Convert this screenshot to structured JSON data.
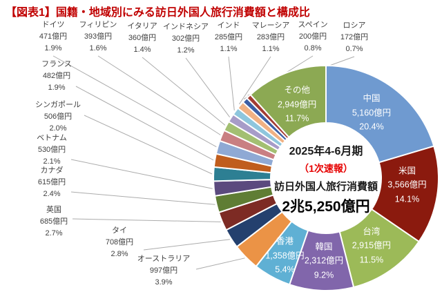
{
  "title": "【図表1】国籍・地域別にみる訪日外国人旅行消費額と構成比",
  "chart_data": {
    "type": "pie",
    "subtype": "donut",
    "title": "【図表1】国籍・地域別にみる訪日外国人旅行消費額と構成比",
    "unit": "億円",
    "legend_position": "none",
    "center": {
      "period": "2025年4-6月期",
      "note": "（1次速報）",
      "metric": "訪日外国人旅行消費額",
      "total": "2兆5,250億円"
    },
    "colors": {
      "title": "#c00000",
      "note_red": "#e60000",
      "leader_line": "#ababab",
      "slice_border": "#ffffff"
    },
    "segments": [
      {
        "label": "中国",
        "amount": "5,160億円",
        "value_oku": 5160,
        "percent": "20.4%",
        "value_pct": 20.4,
        "color": "#6f9ad0"
      },
      {
        "label": "米国",
        "amount": "3,566億円",
        "value_oku": 3566,
        "percent": "14.1%",
        "value_pct": 14.1,
        "color": "#8b1a0e"
      },
      {
        "label": "台湾",
        "amount": "2,915億円",
        "value_oku": 2915,
        "percent": "11.5%",
        "value_pct": 11.5,
        "color": "#9cba58"
      },
      {
        "label": "韓国",
        "amount": "2,312億円",
        "value_oku": 2312,
        "percent": "9.2%",
        "value_pct": 9.2,
        "color": "#8166ab"
      },
      {
        "label": "香港",
        "amount": "1,358億円",
        "value_oku": 1358,
        "percent": "5.4%",
        "value_pct": 5.4,
        "color": "#5fb0d4"
      },
      {
        "label": "オーストラリア",
        "amount": "997億円",
        "value_oku": 997,
        "percent": "3.9%",
        "value_pct": 3.9,
        "color": "#eb9346"
      },
      {
        "label": "タイ",
        "amount": "708億円",
        "value_oku": 708,
        "percent": "2.8%",
        "value_pct": 2.8,
        "color": "#24406e"
      },
      {
        "label": "英国",
        "amount": "685億円",
        "value_oku": 685,
        "percent": "2.7%",
        "value_pct": 2.7,
        "color": "#7d2b24"
      },
      {
        "label": "カナダ",
        "amount": "615億円",
        "value_oku": 615,
        "percent": "2.4%",
        "value_pct": 2.4,
        "color": "#5f7d34"
      },
      {
        "label": "ベトナム",
        "amount": "530億円",
        "value_oku": 530,
        "percent": "2.1%",
        "value_pct": 2.1,
        "color": "#5b4a7e"
      },
      {
        "label": "シンガポール",
        "amount": "506億円",
        "value_oku": 506,
        "percent": "2.0%",
        "value_pct": 2.0,
        "color": "#2d7f93"
      },
      {
        "label": "フランス",
        "amount": "482億円",
        "value_oku": 482,
        "percent": "1.9%",
        "value_pct": 1.9,
        "color": "#c05d1d"
      },
      {
        "label": "ドイツ",
        "amount": "471億円",
        "value_oku": 471,
        "percent": "1.9%",
        "value_pct": 1.9,
        "color": "#8fa9d4"
      },
      {
        "label": "フィリピン",
        "amount": "393億円",
        "value_oku": 393,
        "percent": "1.6%",
        "value_pct": 1.6,
        "color": "#c97f82"
      },
      {
        "label": "イタリア",
        "amount": "360億円",
        "value_oku": 360,
        "percent": "1.4%",
        "value_pct": 1.4,
        "color": "#a3bf72"
      },
      {
        "label": "インドネシア",
        "amount": "302億円",
        "value_oku": 302,
        "percent": "1.2%",
        "value_pct": 1.2,
        "color": "#a79cc8"
      },
      {
        "label": "インド",
        "amount": "285億円",
        "value_oku": 285,
        "percent": "1.1%",
        "value_pct": 1.1,
        "color": "#8ec6dd"
      },
      {
        "label": "マレーシア",
        "amount": "283億円",
        "value_oku": 283,
        "percent": "1.1%",
        "value_pct": 1.1,
        "color": "#f0b183"
      },
      {
        "label": "スペイン",
        "amount": "200億円",
        "value_oku": 200,
        "percent": "0.8%",
        "value_pct": 0.8,
        "color": "#3c5fa5"
      },
      {
        "label": "ロシア",
        "amount": "172億円",
        "value_oku": 172,
        "percent": "0.7%",
        "value_pct": 0.7,
        "color": "#a33c33"
      },
      {
        "label": "その他",
        "amount": "2,949億円",
        "value_oku": 2949,
        "percent": "11.7%",
        "value_pct": 11.7,
        "color": "#8ca953"
      }
    ]
  }
}
